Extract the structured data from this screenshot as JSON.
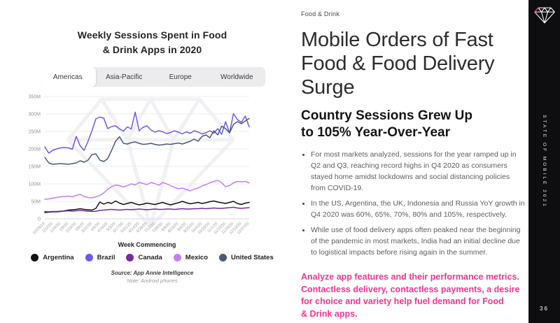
{
  "chart": {
    "title": "Weekly Sessions Spent in Food\n& Drink Apps in 2020",
    "tabs": [
      {
        "label": "Americas",
        "active": true
      },
      {
        "label": "Asia-Pacific",
        "active": false
      },
      {
        "label": "Europe",
        "active": false
      },
      {
        "label": "Worldwide",
        "active": false
      }
    ],
    "xlabel": "Week Commencing",
    "source": "Source: App Annie Intelligence",
    "note": "Note: Android phones"
  },
  "chart_data": {
    "type": "line",
    "title": "Weekly Sessions Spent in Food & Drink Apps in 2020 — Americas",
    "unit": "weekly sessions, millions",
    "ylim": [
      0,
      350
    ],
    "grid": true,
    "legend_position": "bottom",
    "y_ticks": [
      [
        0,
        "0"
      ],
      [
        50,
        "50M"
      ],
      [
        100,
        "100M"
      ],
      [
        150,
        "150M"
      ],
      [
        200,
        "200M"
      ],
      [
        250,
        "250M"
      ],
      [
        300,
        "300M"
      ],
      [
        350,
        "350M"
      ]
    ],
    "x_label_step": 2,
    "x_labels": [
      "12/29/19",
      "1/12/20",
      "1/26/20",
      "2/9/20",
      "2/23/20",
      "3/8/20",
      "3/22/20",
      "4/5/20",
      "4/19/20",
      "5/3/20",
      "5/17/20",
      "5/31/20",
      "6/14/20",
      "6/28/20",
      "7/12/20",
      "7/26/20",
      "8/9/20",
      "8/23/20",
      "9/6/20",
      "9/20/20",
      "10/4/20",
      "10/18/20",
      "11/1/20",
      "11/15/20",
      "11/29/20",
      "12/13/20",
      "12/27/20"
    ],
    "series": [
      {
        "name": "Argentina",
        "color": "#111111",
        "values": [
          18,
          19,
          20,
          20,
          21,
          23,
          25,
          26,
          27,
          29,
          27,
          26,
          25,
          30,
          48,
          42,
          47,
          44,
          51,
          45,
          41,
          44,
          47,
          43,
          40,
          42,
          45,
          43,
          41,
          44,
          47,
          43,
          40,
          43,
          46,
          50,
          46,
          43,
          45,
          47,
          44,
          46,
          49,
          51,
          48,
          46,
          44,
          47,
          50,
          44,
          41,
          45,
          47
        ]
      },
      {
        "name": "Brazil",
        "color": "#6B5AE7",
        "values": [
          206,
          188,
          196,
          200,
          203,
          204,
          203,
          199,
          236,
          209,
          196,
          222,
          252,
          286,
          291,
          288,
          258,
          264,
          266,
          257,
          251,
          263,
          257,
          305,
          252,
          262,
          266,
          254,
          248,
          252,
          249,
          244,
          247,
          252,
          248,
          243,
          249,
          245,
          252,
          248,
          243,
          246,
          252,
          245,
          258,
          242,
          278,
          246,
          301,
          284,
          276,
          294,
          263
        ]
      },
      {
        "name": "Canada",
        "color": "#742D9E",
        "values": [
          21,
          20,
          21,
          21,
          22,
          22,
          23,
          22,
          23,
          24,
          23,
          22,
          21,
          22,
          24,
          25,
          26,
          27,
          26,
          25,
          26,
          27,
          26,
          27,
          28,
          27,
          26,
          27,
          28,
          27,
          27,
          28,
          28,
          27,
          28,
          29,
          28,
          28,
          29,
          29,
          30,
          29,
          30,
          31,
          30,
          30,
          31,
          32,
          33,
          31,
          30,
          31,
          32
        ]
      },
      {
        "name": "Mexico",
        "color": "#C77DF0",
        "values": [
          56,
          57,
          59,
          61,
          63,
          64,
          65,
          63,
          67,
          70,
          64,
          61,
          60,
          63,
          67,
          74,
          84,
          92,
          97,
          95,
          91,
          95,
          100,
          97,
          104,
          101,
          98,
          104,
          101,
          96,
          104,
          100,
          95,
          90,
          86,
          88,
          84,
          80,
          85,
          88,
          94,
          98,
          103,
          107,
          110,
          103,
          92,
          95,
          103,
          107,
          106,
          107,
          103
        ]
      },
      {
        "name": "United States",
        "color": "#475B73",
        "values": [
          176,
          160,
          156,
          157,
          158,
          157,
          156,
          158,
          160,
          166,
          162,
          168,
          184,
          186,
          168,
          164,
          172,
          196,
          222,
          235,
          216,
          214,
          218,
          220,
          216,
          213,
          214,
          216,
          213,
          211,
          212,
          214,
          213,
          215,
          217,
          214,
          218,
          222,
          228,
          222,
          236,
          240,
          232,
          252,
          240,
          265,
          258,
          246,
          270,
          278,
          272,
          280,
          287
        ]
      }
    ]
  },
  "content": {
    "eyebrow": "Food & Drink",
    "headline": "Mobile Orders of Fast Food & Food Delivery Surge",
    "subhead": "Country Sessions Grew Up\nto 105% Year-Over-Year",
    "bullets": [
      "For most markets analyzed, sessions for the year ramped up in Q2 and Q3, reaching record highs in Q4 2020 as consumers stayed home amidst lockdowns and social distancing policies from COVID-19.",
      "In the US, Argentina, the UK, Indonesia and Russia YoY growth in Q4 2020 was 60%, 65%, 70%, 80% and 105%, respectively.",
      "While use of food delivery apps often peaked near the beginning of the pandemic in most markets, India had an initial decline due to logistical impacts before rising again in the summer."
    ],
    "cta": "Analyze app features and their performance metrics.\nContactless delivery, contactless payments, a desire\nfor choice and variety help fuel demand for Food\n& Drink apps.",
    "accent_pink": "#F5348E"
  },
  "sidebar": {
    "brand_vertical": "STATE OF MOBILE 2021",
    "page_number": "36"
  }
}
